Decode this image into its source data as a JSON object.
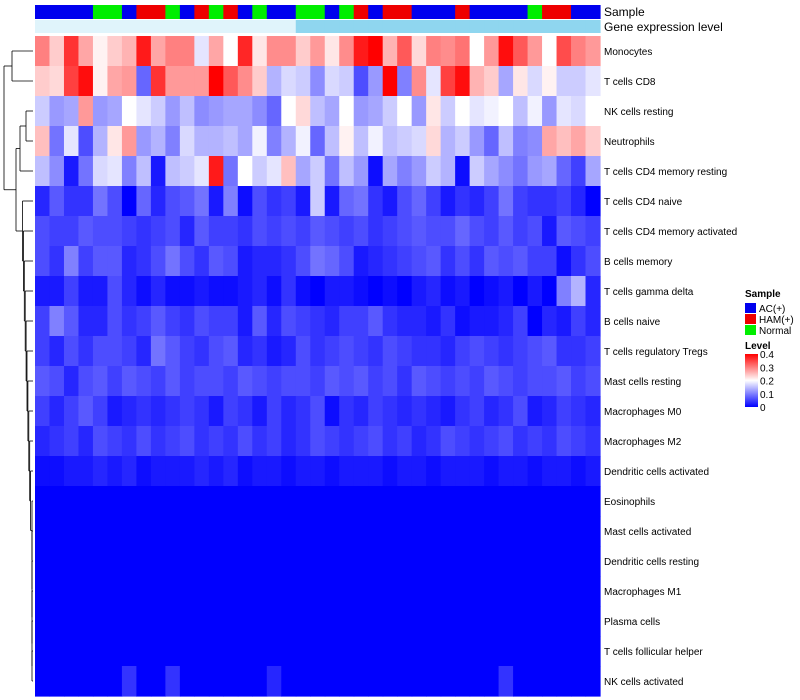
{
  "chart_data": {
    "type": "heatmap",
    "title": "",
    "sample_annotation_label": "Sample",
    "expression_annotation_label": "Gene expression level",
    "legend": {
      "sample_title": "Sample",
      "sample_entries": [
        {
          "name": "AC(+)",
          "color": "#0000ee"
        },
        {
          "name": "HAM(+)",
          "color": "#ee0000"
        },
        {
          "name": "Normal",
          "color": "#00ee00"
        }
      ],
      "level_title": "Level",
      "level_ticks": [
        "0.4",
        "0.3",
        "0.2",
        "0.1",
        "0"
      ],
      "level_tick_values": [
        0.4,
        0.3,
        0.2,
        0.1,
        0
      ],
      "color_low": "#0000ff",
      "color_mid": "#ffffff",
      "color_high": "#ff0000",
      "level_min": 0,
      "level_mid": 0.2,
      "level_max": 0.4
    },
    "sample_groups": [
      "A",
      "A",
      "A",
      "A",
      "N",
      "N",
      "A",
      "H",
      "H",
      "N",
      "A",
      "H",
      "N",
      "H",
      "A",
      "N",
      "A",
      "A",
      "N",
      "N",
      "A",
      "N",
      "H",
      "A",
      "H",
      "H",
      "A",
      "A",
      "A",
      "H",
      "A",
      "A",
      "A",
      "A",
      "N",
      "H",
      "H",
      "A",
      "A"
    ],
    "expression_level_split": 18,
    "expression_colors": [
      "#e0f4fb",
      "#8fd6ef"
    ],
    "rows": [
      "Monocytes",
      "T cells CD8",
      "NK cells resting",
      "Neutrophils",
      "T cells CD4 memory resting",
      "T cells CD4 naive",
      "T cells CD4 memory activated",
      "B cells memory",
      "T cells gamma delta",
      "B cells naive",
      "T cells regulatory  Tregs",
      "Mast cells resting",
      "Macrophages M0",
      "Macrophages M2",
      "Dendritic cells activated",
      "Eosinophils",
      "Mast cells activated",
      "Dendritic cells resting",
      "Macrophages M1",
      "Plasma cells",
      "T cells follicular helper",
      "NK cells activated"
    ],
    "values": [
      [
        0.3,
        0.24,
        0.36,
        0.27,
        0.21,
        0.24,
        0.26,
        0.38,
        0.27,
        0.3,
        0.3,
        0.18,
        0.27,
        0.2,
        0.37,
        0.22,
        0.29,
        0.29,
        0.24,
        0.28,
        0.22,
        0.29,
        0.38,
        0.4,
        0.26,
        0.33,
        0.23,
        0.3,
        0.29,
        0.31,
        0.2,
        0.28,
        0.39,
        0.33,
        0.28,
        0.2,
        0.34,
        0.3,
        0.28
      ],
      [
        0.24,
        0.23,
        0.35,
        0.39,
        0.21,
        0.27,
        0.28,
        0.08,
        0.36,
        0.28,
        0.28,
        0.28,
        0.4,
        0.33,
        0.29,
        0.24,
        0.14,
        0.17,
        0.16,
        0.11,
        0.17,
        0.16,
        0.06,
        0.12,
        0.4,
        0.1,
        0.29,
        0.18,
        0.35,
        0.39,
        0.26,
        0.24,
        0.13,
        0.22,
        0.17,
        0.21,
        0.16,
        0.16,
        0.18
      ],
      [
        0.16,
        0.12,
        0.13,
        0.28,
        0.12,
        0.13,
        0.2,
        0.18,
        0.16,
        0.12,
        0.15,
        0.11,
        0.12,
        0.13,
        0.13,
        0.11,
        0.08,
        0.2,
        0.23,
        0.15,
        0.13,
        0.2,
        0.12,
        0.13,
        0.16,
        0.2,
        0.12,
        0.22,
        0.16,
        0.2,
        0.18,
        0.19,
        0.2,
        0.15,
        0.19,
        0.12,
        0.18,
        0.17,
        0.2
      ],
      [
        0.25,
        0.09,
        0.18,
        0.06,
        0.14,
        0.22,
        0.28,
        0.12,
        0.14,
        0.1,
        0.17,
        0.14,
        0.14,
        0.15,
        0.13,
        0.19,
        0.1,
        0.14,
        0.19,
        0.08,
        0.15,
        0.21,
        0.15,
        0.19,
        0.15,
        0.16,
        0.17,
        0.23,
        0.14,
        0.16,
        0.12,
        0.08,
        0.15,
        0.1,
        0.11,
        0.27,
        0.25,
        0.27,
        0.24
      ],
      [
        0.15,
        0.11,
        0.02,
        0.09,
        0.17,
        0.18,
        0.1,
        0.15,
        0.02,
        0.15,
        0.16,
        0.18,
        0.38,
        0.09,
        0.2,
        0.16,
        0.18,
        0.25,
        0.13,
        0.16,
        0.09,
        0.15,
        0.12,
        0.01,
        0.13,
        0.1,
        0.12,
        0.16,
        0.14,
        0.01,
        0.16,
        0.13,
        0.11,
        0.09,
        0.12,
        0.13,
        0.08,
        0.05,
        0.13
      ],
      [
        0.03,
        0.07,
        0.04,
        0.04,
        0.09,
        0.06,
        0.0,
        0.08,
        0.03,
        0.06,
        0.07,
        0.09,
        0.02,
        0.1,
        0.01,
        0.06,
        0.04,
        0.05,
        0.02,
        0.16,
        0.02,
        0.08,
        0.09,
        0.04,
        0.02,
        0.06,
        0.08,
        0.05,
        0.02,
        0.04,
        0.03,
        0.05,
        0.09,
        0.05,
        0.04,
        0.04,
        0.05,
        0.03,
        0.0
      ],
      [
        0.06,
        0.05,
        0.05,
        0.07,
        0.06,
        0.06,
        0.05,
        0.04,
        0.05,
        0.06,
        0.03,
        0.07,
        0.05,
        0.05,
        0.04,
        0.06,
        0.05,
        0.06,
        0.05,
        0.07,
        0.06,
        0.05,
        0.06,
        0.04,
        0.05,
        0.06,
        0.07,
        0.06,
        0.06,
        0.08,
        0.06,
        0.05,
        0.07,
        0.05,
        0.06,
        0.02,
        0.07,
        0.06,
        0.05
      ],
      [
        0.06,
        0.04,
        0.1,
        0.05,
        0.07,
        0.07,
        0.03,
        0.04,
        0.06,
        0.09,
        0.06,
        0.04,
        0.07,
        0.06,
        0.02,
        0.03,
        0.03,
        0.04,
        0.06,
        0.09,
        0.08,
        0.06,
        0.02,
        0.03,
        0.04,
        0.05,
        0.06,
        0.07,
        0.04,
        0.06,
        0.04,
        0.07,
        0.06,
        0.07,
        0.05,
        0.05,
        0.01,
        0.04,
        0.06
      ],
      [
        0.02,
        0.02,
        0.05,
        0.02,
        0.02,
        0.06,
        0.03,
        0.01,
        0.03,
        0.01,
        0.01,
        0.02,
        0.01,
        0.01,
        0.02,
        0.03,
        0.01,
        0.04,
        0.01,
        0.0,
        0.02,
        0.02,
        0.01,
        0.0,
        0.01,
        0.0,
        0.02,
        0.03,
        0.01,
        0.02,
        0.0,
        0.01,
        0.02,
        0.0,
        0.02,
        0.0,
        0.1,
        0.14,
        0.03
      ],
      [
        0.05,
        0.1,
        0.07,
        0.03,
        0.03,
        0.06,
        0.04,
        0.05,
        0.07,
        0.05,
        0.04,
        0.06,
        0.05,
        0.05,
        0.02,
        0.07,
        0.03,
        0.06,
        0.05,
        0.04,
        0.03,
        0.05,
        0.05,
        0.07,
        0.04,
        0.03,
        0.03,
        0.02,
        0.04,
        0.01,
        0.02,
        0.02,
        0.03,
        0.05,
        0.0,
        0.03,
        0.02,
        0.05,
        0.03
      ],
      [
        0.05,
        0.03,
        0.06,
        0.04,
        0.06,
        0.06,
        0.05,
        0.03,
        0.09,
        0.07,
        0.05,
        0.04,
        0.06,
        0.07,
        0.03,
        0.04,
        0.02,
        0.03,
        0.06,
        0.04,
        0.05,
        0.06,
        0.05,
        0.04,
        0.06,
        0.05,
        0.04,
        0.04,
        0.03,
        0.05,
        0.06,
        0.05,
        0.04,
        0.05,
        0.06,
        0.07,
        0.04,
        0.04,
        0.05
      ],
      [
        0.07,
        0.06,
        0.03,
        0.06,
        0.07,
        0.05,
        0.07,
        0.06,
        0.05,
        0.07,
        0.05,
        0.06,
        0.06,
        0.05,
        0.07,
        0.06,
        0.05,
        0.06,
        0.06,
        0.05,
        0.07,
        0.06,
        0.07,
        0.05,
        0.06,
        0.04,
        0.07,
        0.06,
        0.05,
        0.06,
        0.05,
        0.07,
        0.06,
        0.05,
        0.06,
        0.06,
        0.07,
        0.05,
        0.06
      ],
      [
        0.05,
        0.03,
        0.05,
        0.07,
        0.05,
        0.02,
        0.03,
        0.04,
        0.03,
        0.04,
        0.05,
        0.04,
        0.02,
        0.05,
        0.04,
        0.02,
        0.05,
        0.03,
        0.04,
        0.06,
        0.01,
        0.04,
        0.03,
        0.05,
        0.04,
        0.03,
        0.04,
        0.03,
        0.02,
        0.04,
        0.05,
        0.03,
        0.04,
        0.06,
        0.02,
        0.03,
        0.05,
        0.04,
        0.03
      ],
      [
        0.03,
        0.04,
        0.05,
        0.03,
        0.06,
        0.05,
        0.04,
        0.06,
        0.04,
        0.05,
        0.06,
        0.04,
        0.05,
        0.04,
        0.06,
        0.04,
        0.05,
        0.03,
        0.04,
        0.06,
        0.05,
        0.04,
        0.05,
        0.06,
        0.04,
        0.05,
        0.03,
        0.04,
        0.06,
        0.05,
        0.04,
        0.05,
        0.06,
        0.04,
        0.05,
        0.04,
        0.06,
        0.05,
        0.04
      ],
      [
        0.01,
        0.01,
        0.02,
        0.02,
        0.03,
        0.02,
        0.03,
        0.01,
        0.02,
        0.02,
        0.02,
        0.03,
        0.02,
        0.03,
        0.01,
        0.02,
        0.02,
        0.01,
        0.02,
        0.02,
        0.01,
        0.02,
        0.02,
        0.02,
        0.01,
        0.02,
        0.02,
        0.01,
        0.02,
        0.02,
        0.02,
        0.01,
        0.02,
        0.02,
        0.01,
        0.02,
        0.02,
        0.01,
        0.02
      ],
      [
        0,
        0,
        0,
        0,
        0,
        0,
        0,
        0,
        0,
        0,
        0,
        0,
        0,
        0,
        0,
        0,
        0,
        0,
        0,
        0,
        0,
        0,
        0,
        0,
        0,
        0,
        0,
        0,
        0,
        0,
        0,
        0,
        0,
        0,
        0,
        0,
        0,
        0,
        0
      ],
      [
        0,
        0,
        0,
        0,
        0,
        0,
        0,
        0,
        0,
        0,
        0,
        0,
        0,
        0,
        0,
        0,
        0,
        0,
        0,
        0,
        0,
        0,
        0,
        0,
        0,
        0,
        0,
        0,
        0,
        0,
        0,
        0,
        0,
        0,
        0,
        0,
        0,
        0,
        0
      ],
      [
        0,
        0,
        0,
        0,
        0,
        0,
        0,
        0,
        0,
        0,
        0,
        0,
        0,
        0,
        0,
        0,
        0,
        0,
        0,
        0,
        0,
        0,
        0,
        0,
        0,
        0,
        0,
        0,
        0,
        0,
        0,
        0,
        0,
        0,
        0,
        0,
        0,
        0,
        0
      ],
      [
        0,
        0,
        0,
        0,
        0,
        0,
        0,
        0,
        0,
        0,
        0,
        0,
        0,
        0,
        0,
        0,
        0,
        0,
        0,
        0,
        0,
        0,
        0,
        0,
        0,
        0,
        0,
        0,
        0,
        0,
        0,
        0,
        0,
        0,
        0,
        0,
        0,
        0,
        0
      ],
      [
        0,
        0,
        0,
        0,
        0,
        0,
        0,
        0,
        0,
        0,
        0,
        0,
        0,
        0,
        0,
        0,
        0,
        0,
        0,
        0,
        0,
        0,
        0,
        0,
        0,
        0,
        0,
        0,
        0,
        0,
        0,
        0,
        0,
        0,
        0,
        0,
        0,
        0,
        0
      ],
      [
        0,
        0,
        0,
        0,
        0,
        0,
        0,
        0,
        0,
        0,
        0,
        0,
        0,
        0,
        0,
        0,
        0,
        0,
        0,
        0,
        0,
        0,
        0,
        0,
        0,
        0,
        0,
        0,
        0,
        0,
        0,
        0,
        0,
        0,
        0,
        0,
        0,
        0,
        0
      ],
      [
        0,
        0,
        0,
        0,
        0,
        0,
        0.04,
        0,
        0,
        0.04,
        0,
        0,
        0,
        0,
        0,
        0,
        0.03,
        0,
        0,
        0,
        0,
        0,
        0,
        0,
        0,
        0,
        0,
        0,
        0,
        0,
        0,
        0,
        0.04,
        0,
        0,
        0,
        0,
        0,
        0
      ]
    ]
  }
}
